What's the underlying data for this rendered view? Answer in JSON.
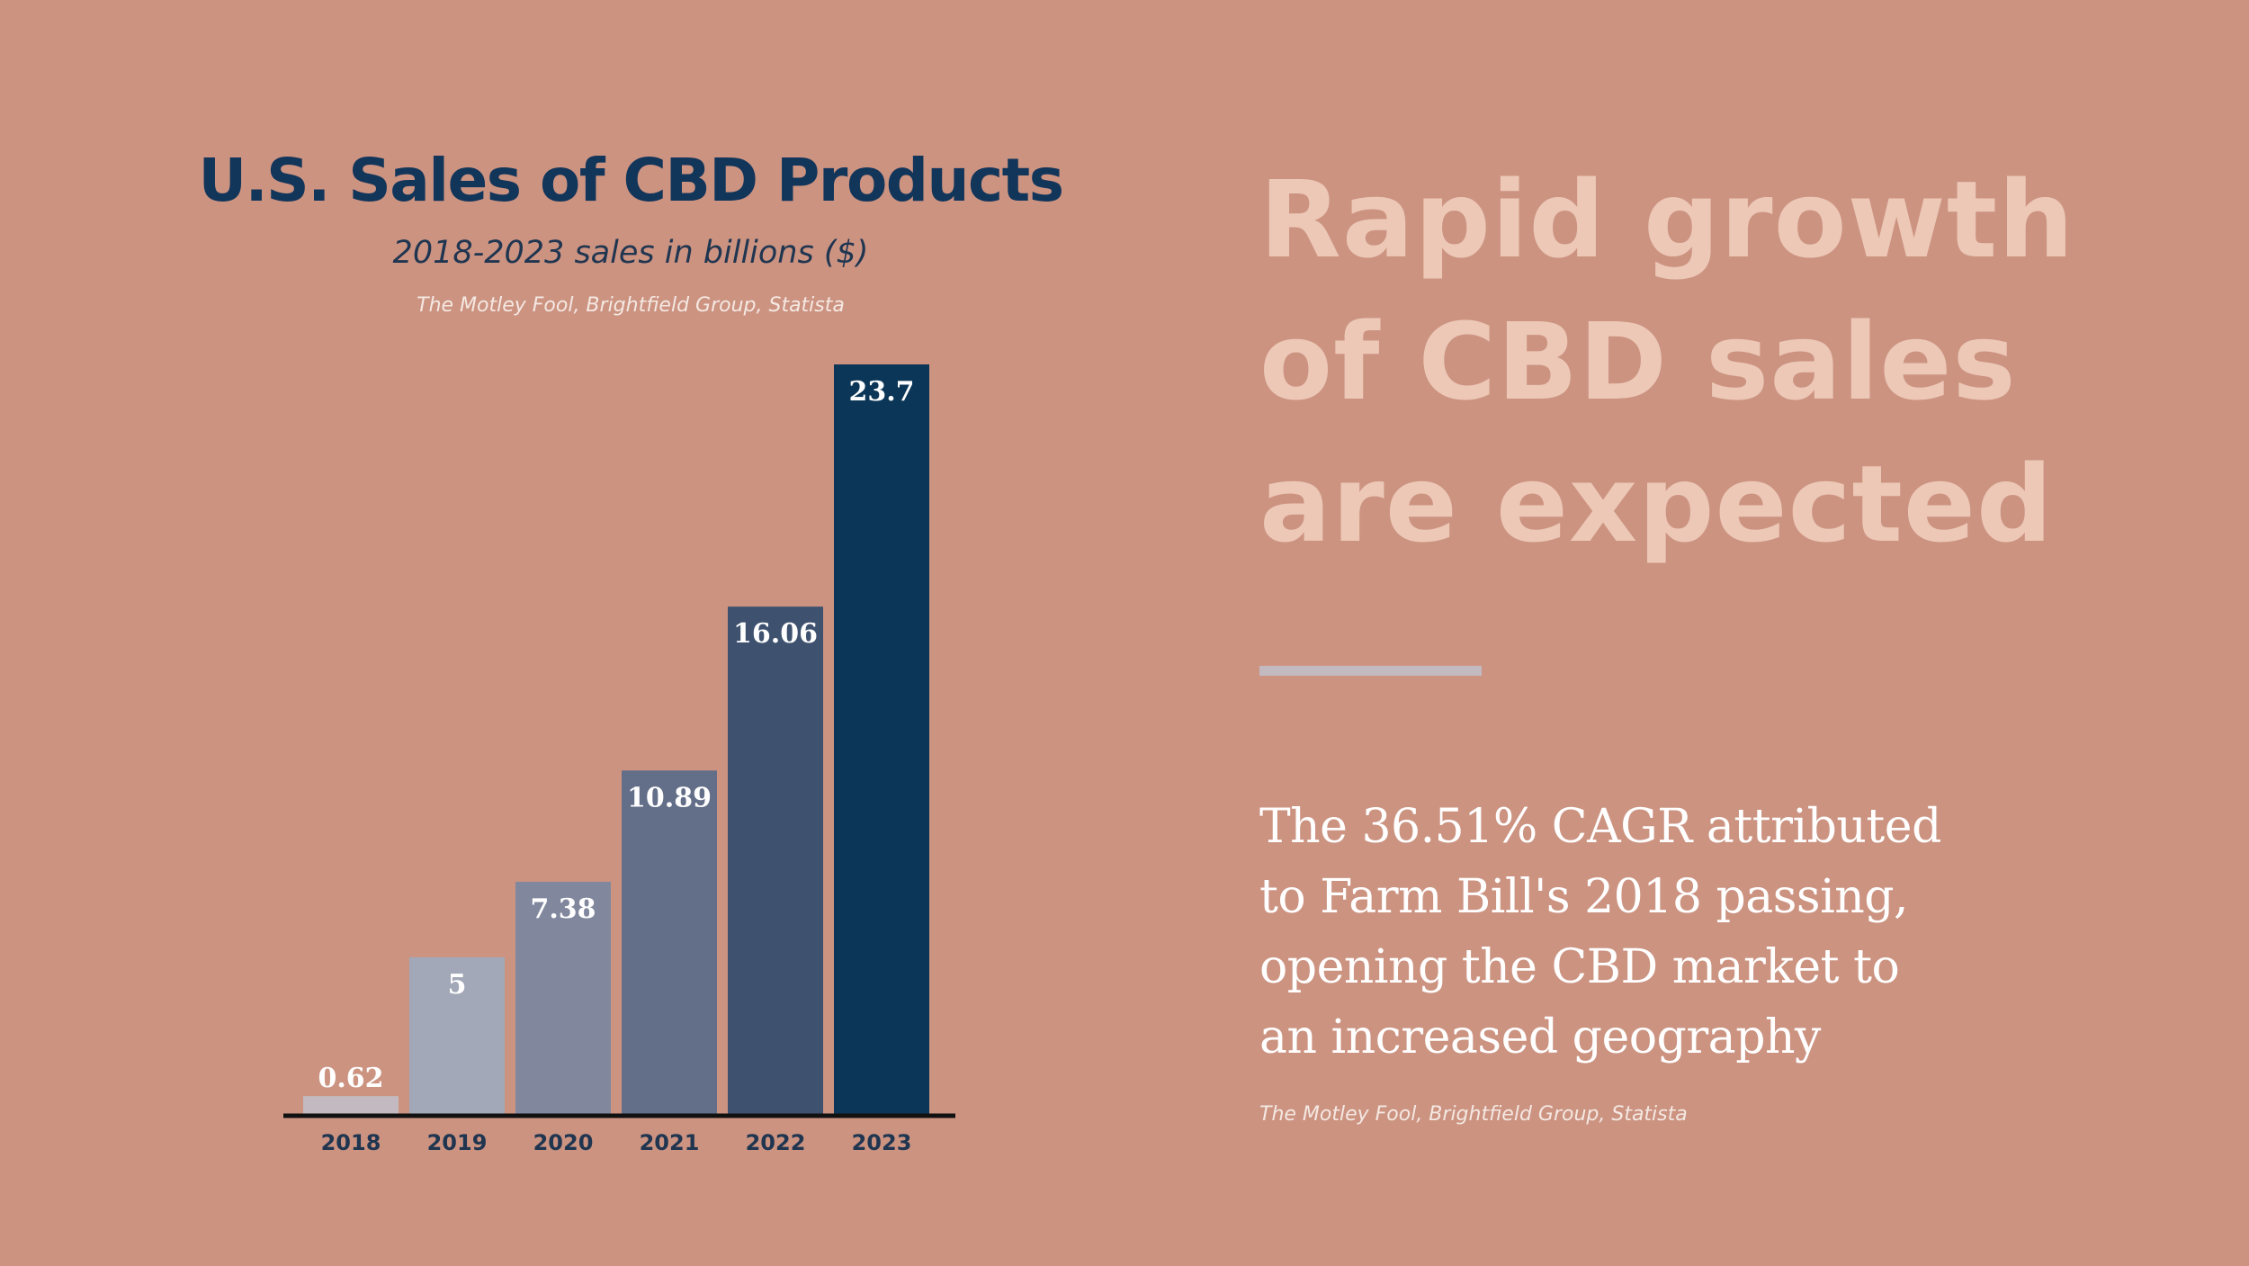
{
  "chart_data": {
    "type": "bar",
    "title": "U.S. Sales of CBD Products",
    "subtitle": "2018-2023 sales in billions ($)",
    "source": "The Motley Fool, Brightfield Group, Statista",
    "categories": [
      "2018",
      "2019",
      "2020",
      "2021",
      "2022",
      "2023"
    ],
    "values": [
      0.62,
      5,
      7.38,
      10.89,
      16.06,
      23.7
    ],
    "value_labels": [
      "0.62",
      "5",
      "7.38",
      "10.89",
      "16.06",
      "23.7"
    ],
    "bar_colors": [
      "#c2bac0",
      "#a2a8b7",
      "#81889e",
      "#636e89",
      "#3e516f",
      "#0b3657"
    ],
    "xlabel": "",
    "ylabel": "",
    "ylim": [
      0,
      23.7
    ],
    "grid": false,
    "legend": "none"
  },
  "headline": {
    "lines": [
      "Rapid growth",
      "of CBD sales",
      "are expected"
    ]
  },
  "body": {
    "lines": [
      "The 36.51% CAGR attributed",
      "to Farm Bill's 2018 passing,",
      "opening the CBD market to",
      "an increased geography"
    ],
    "source": "The Motley Fool, Brightfield Group, Statista"
  },
  "colors": {
    "background": "#cc9381",
    "title": "#12355a",
    "headline": "#edc8b7",
    "divider": "#c2bac0",
    "axis": "#111111"
  }
}
